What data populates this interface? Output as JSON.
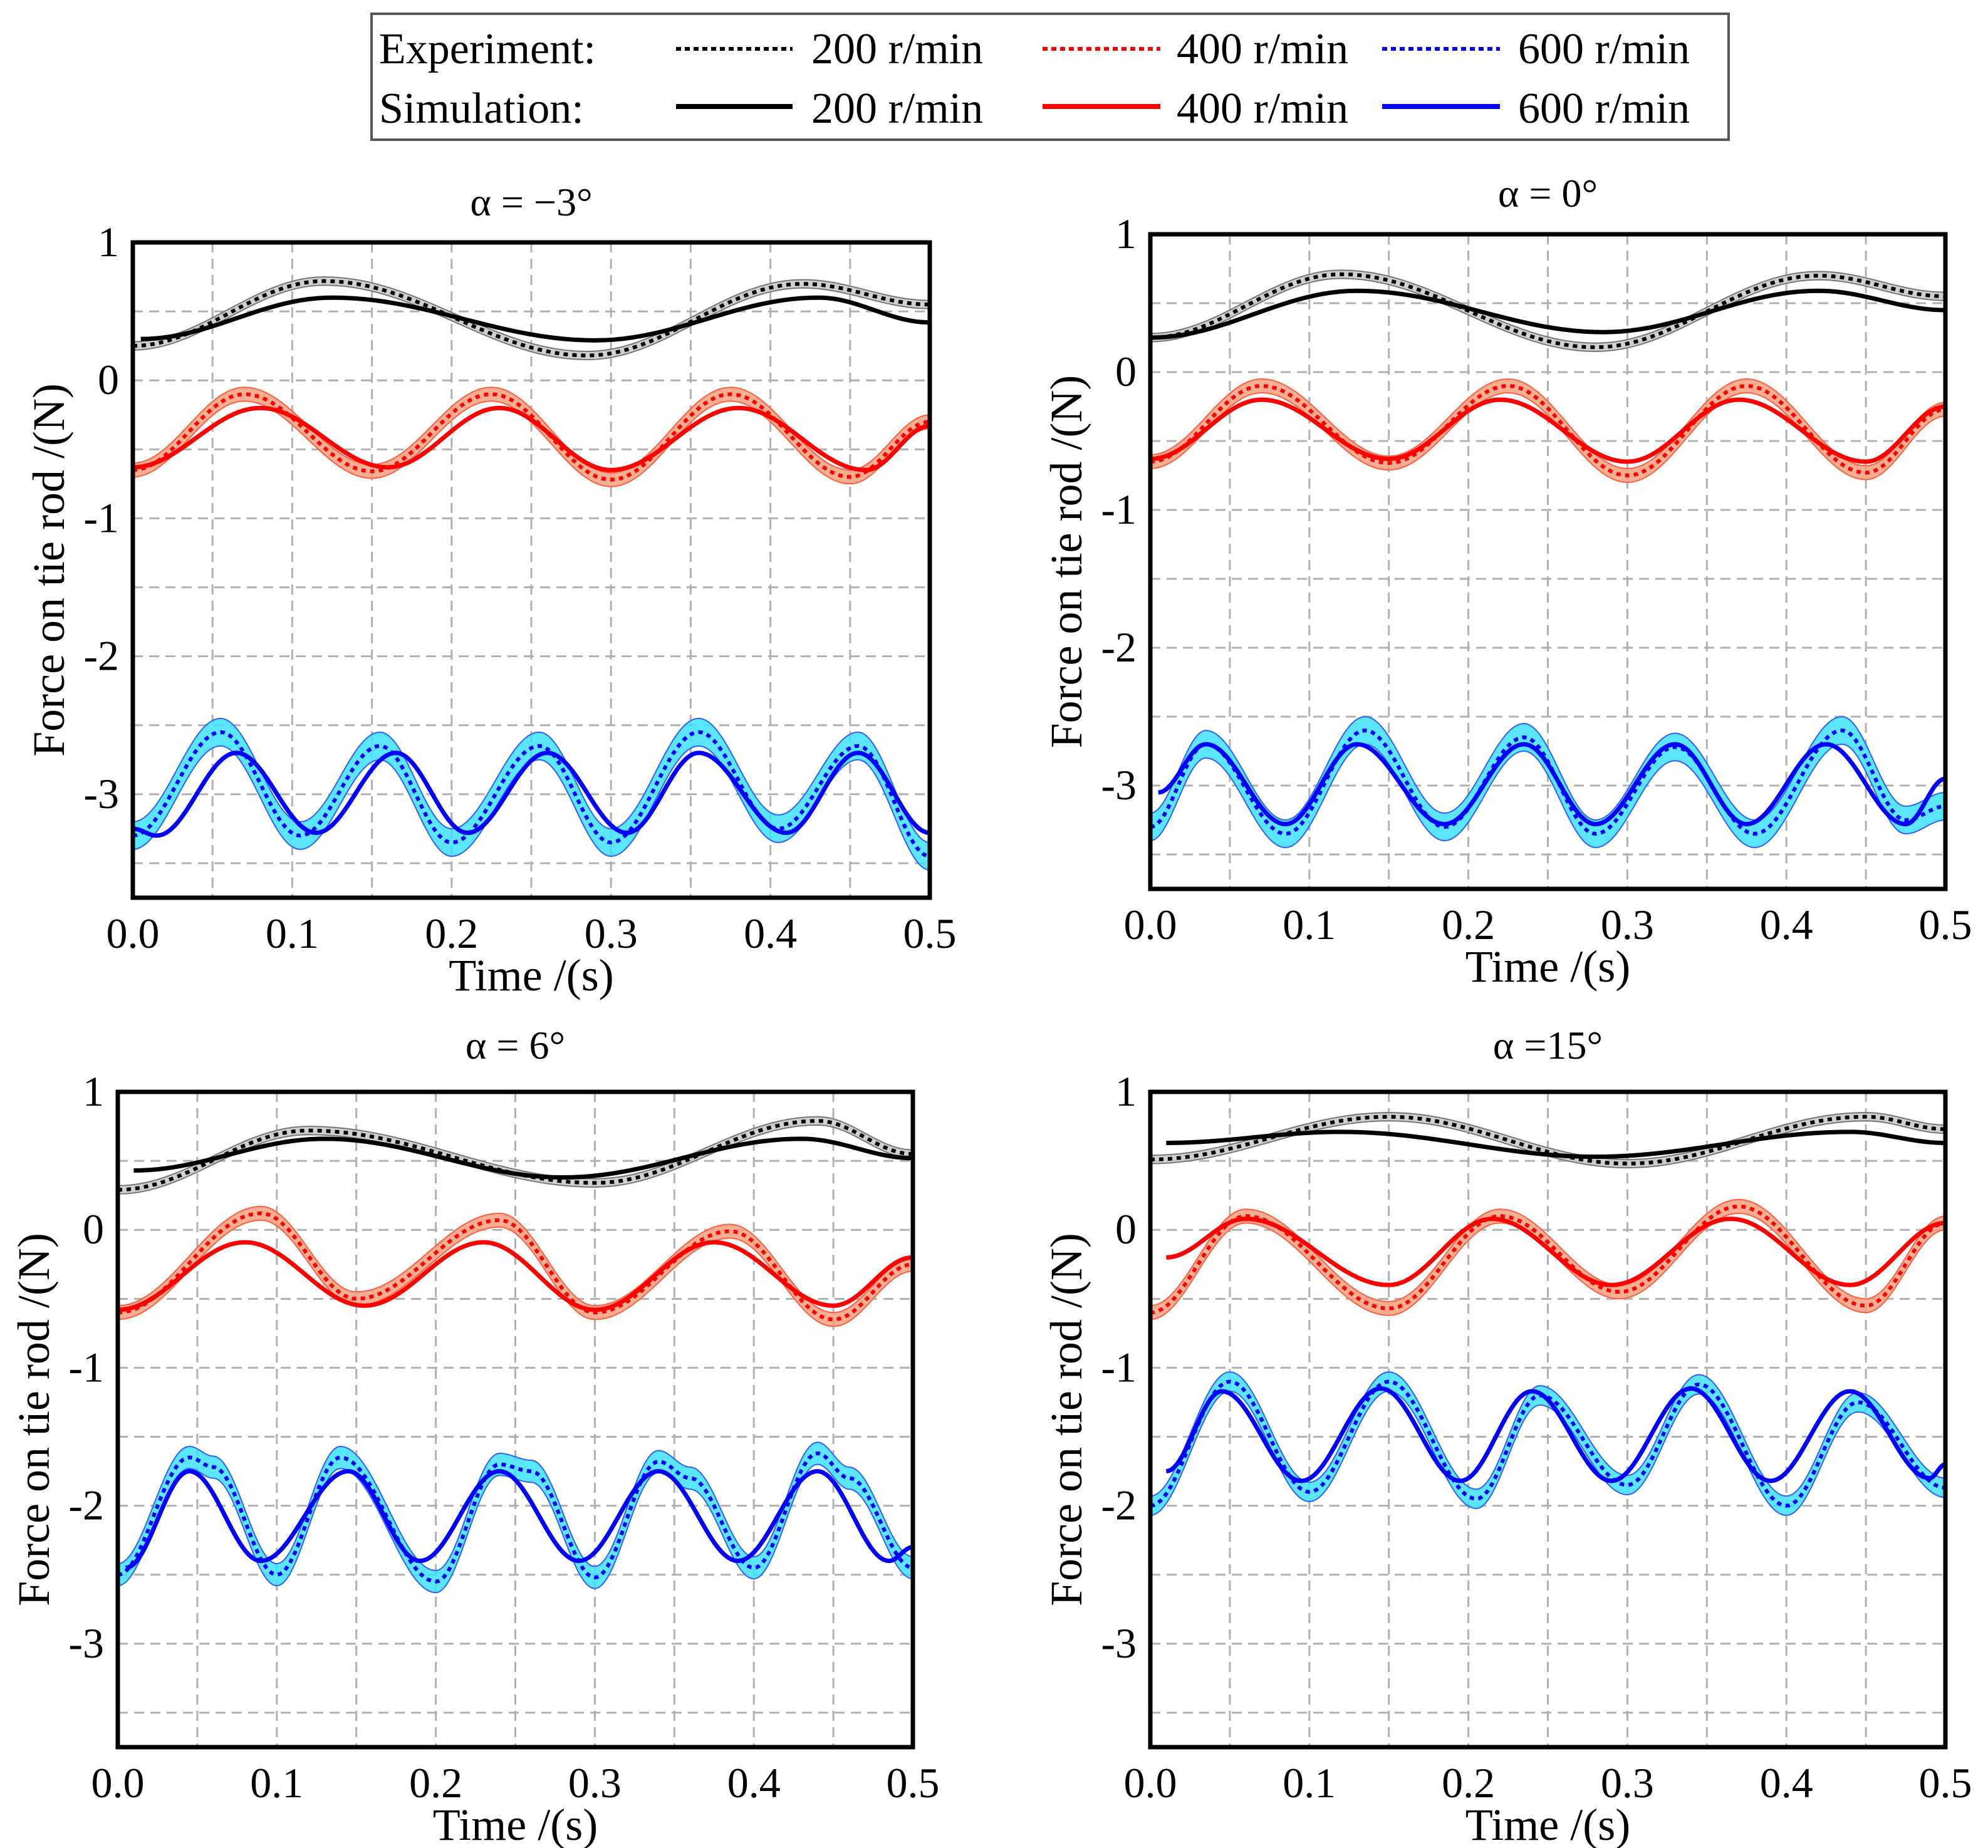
{
  "legend": {
    "experiment_label": "Experiment:",
    "simulation_label": "Simulation:",
    "speeds": [
      "200 r/min",
      "400 r/min",
      "600 r/min"
    ],
    "colors": [
      "#000000",
      "#ff0000",
      "#0000ff"
    ]
  },
  "chart_data": [
    {
      "type": "line",
      "title": "α = −3°",
      "xlabel": "Time /(s)",
      "ylabel": "Force on tie rod /(N)",
      "xlim": [
        0,
        0.5
      ],
      "ylim": [
        -3.75,
        1
      ],
      "xticks": [
        "0.0",
        "0.1",
        "0.2",
        "0.3",
        "0.4",
        "0.5"
      ],
      "yticks": [
        "1",
        "0",
        "-1",
        "-2",
        "-3"
      ],
      "grid": true,
      "band_halfwidth": {
        "200": 0.03,
        "400": 0.05,
        "600": 0.1
      },
      "series": {
        "exp200": [
          [
            0,
            0.25
          ],
          [
            0.12,
            0.72
          ],
          [
            0.285,
            0.18
          ],
          [
            0.42,
            0.7
          ],
          [
            0.5,
            0.55
          ]
        ],
        "sim200": [
          [
            0.005,
            0.3
          ],
          [
            0.125,
            0.6
          ],
          [
            0.29,
            0.29
          ],
          [
            0.43,
            0.6
          ],
          [
            0.5,
            0.42
          ]
        ],
        "exp400": [
          [
            0,
            -0.65
          ],
          [
            0.07,
            -0.1
          ],
          [
            0.15,
            -0.66
          ],
          [
            0.225,
            -0.1
          ],
          [
            0.3,
            -0.72
          ],
          [
            0.375,
            -0.1
          ],
          [
            0.45,
            -0.7
          ],
          [
            0.5,
            -0.3
          ]
        ],
        "sim400": [
          [
            0,
            -0.63
          ],
          [
            0.08,
            -0.2
          ],
          [
            0.16,
            -0.63
          ],
          [
            0.23,
            -0.2
          ],
          [
            0.3,
            -0.65
          ],
          [
            0.38,
            -0.2
          ],
          [
            0.46,
            -0.65
          ],
          [
            0.5,
            -0.33
          ]
        ],
        "exp600": [
          [
            0,
            -3.3
          ],
          [
            0.055,
            -2.55
          ],
          [
            0.105,
            -3.3
          ],
          [
            0.155,
            -2.65
          ],
          [
            0.2,
            -3.35
          ],
          [
            0.255,
            -2.65
          ],
          [
            0.3,
            -3.35
          ],
          [
            0.355,
            -2.55
          ],
          [
            0.405,
            -3.25
          ],
          [
            0.455,
            -2.65
          ],
          [
            0.5,
            -3.45
          ]
        ],
        "sim600": [
          [
            0.0,
            -3.25
          ],
          [
            0.015,
            -3.3
          ],
          [
            0.065,
            -2.7
          ],
          [
            0.115,
            -3.28
          ],
          [
            0.165,
            -2.7
          ],
          [
            0.21,
            -3.28
          ],
          [
            0.26,
            -2.7
          ],
          [
            0.31,
            -3.28
          ],
          [
            0.355,
            -2.7
          ],
          [
            0.41,
            -3.28
          ],
          [
            0.455,
            -2.7
          ],
          [
            0.5,
            -3.28
          ]
        ]
      }
    },
    {
      "type": "line",
      "title": "α = 0°",
      "xlabel": "Time /(s)",
      "ylabel": "Force on tie rod /(N)",
      "xlim": [
        0,
        0.5
      ],
      "ylim": [
        -3.75,
        1
      ],
      "xticks": [
        "0.0",
        "0.1",
        "0.2",
        "0.3",
        "0.4",
        "0.5"
      ],
      "yticks": [
        "1",
        "0",
        "-1",
        "-2",
        "-3"
      ],
      "grid": true,
      "band_halfwidth": {
        "200": 0.03,
        "400": 0.05,
        "600": 0.1
      },
      "series": {
        "exp200": [
          [
            0,
            0.25
          ],
          [
            0.12,
            0.71
          ],
          [
            0.28,
            0.18
          ],
          [
            0.42,
            0.7
          ],
          [
            0.5,
            0.55
          ]
        ],
        "sim200": [
          [
            0,
            0.25
          ],
          [
            0.13,
            0.59
          ],
          [
            0.285,
            0.29
          ],
          [
            0.42,
            0.59
          ],
          [
            0.5,
            0.45
          ]
        ],
        "exp400": [
          [
            0,
            -0.65
          ],
          [
            0.07,
            -0.1
          ],
          [
            0.15,
            -0.66
          ],
          [
            0.225,
            -0.1
          ],
          [
            0.3,
            -0.75
          ],
          [
            0.375,
            -0.1
          ],
          [
            0.45,
            -0.73
          ],
          [
            0.5,
            -0.27
          ]
        ],
        "sim400": [
          [
            0,
            -0.63
          ],
          [
            0.07,
            -0.2
          ],
          [
            0.15,
            -0.63
          ],
          [
            0.22,
            -0.2
          ],
          [
            0.3,
            -0.65
          ],
          [
            0.37,
            -0.2
          ],
          [
            0.45,
            -0.65
          ],
          [
            0.5,
            -0.25
          ]
        ],
        "exp600": [
          [
            0,
            -3.3
          ],
          [
            0.035,
            -2.7
          ],
          [
            0.085,
            -3.35
          ],
          [
            0.135,
            -2.6
          ],
          [
            0.185,
            -3.3
          ],
          [
            0.235,
            -2.65
          ],
          [
            0.28,
            -3.35
          ],
          [
            0.33,
            -2.72
          ],
          [
            0.38,
            -3.35
          ],
          [
            0.435,
            -2.6
          ],
          [
            0.475,
            -3.25
          ],
          [
            0.5,
            -3.15
          ]
        ],
        "sim600": [
          [
            0.005,
            -3.05
          ],
          [
            0.035,
            -2.7
          ],
          [
            0.085,
            -3.28
          ],
          [
            0.13,
            -2.7
          ],
          [
            0.185,
            -3.28
          ],
          [
            0.235,
            -2.7
          ],
          [
            0.28,
            -3.28
          ],
          [
            0.33,
            -2.7
          ],
          [
            0.375,
            -3.28
          ],
          [
            0.425,
            -2.7
          ],
          [
            0.475,
            -3.28
          ],
          [
            0.5,
            -2.95
          ]
        ]
      }
    },
    {
      "type": "line",
      "title": "α = 6°",
      "xlabel": "Time /(s)",
      "ylabel": "Force on tie rod /(N)",
      "xlim": [
        0,
        0.5
      ],
      "ylim": [
        -3.75,
        1
      ],
      "xticks": [
        "0.0",
        "0.1",
        "0.2",
        "0.3",
        "0.4",
        "0.5"
      ],
      "yticks": [
        "1",
        "0",
        "-1",
        "-2",
        "-3"
      ],
      "grid": true,
      "band_halfwidth": {
        "200": 0.03,
        "400": 0.05,
        "600": 0.08
      },
      "series": {
        "exp200": [
          [
            0,
            0.29
          ],
          [
            0.12,
            0.72
          ],
          [
            0.3,
            0.34
          ],
          [
            0.44,
            0.79
          ],
          [
            0.5,
            0.55
          ]
        ],
        "sim200": [
          [
            0.01,
            0.43
          ],
          [
            0.13,
            0.66
          ],
          [
            0.28,
            0.38
          ],
          [
            0.43,
            0.66
          ],
          [
            0.5,
            0.52
          ]
        ],
        "exp400": [
          [
            0,
            -0.6
          ],
          [
            0.09,
            0.12
          ],
          [
            0.15,
            -0.5
          ],
          [
            0.24,
            0.07
          ],
          [
            0.3,
            -0.6
          ],
          [
            0.385,
            -0.01
          ],
          [
            0.45,
            -0.65
          ],
          [
            0.5,
            -0.25
          ]
        ],
        "sim400": [
          [
            0,
            -0.58
          ],
          [
            0.08,
            -0.09
          ],
          [
            0.155,
            -0.55
          ],
          [
            0.23,
            -0.09
          ],
          [
            0.3,
            -0.58
          ],
          [
            0.375,
            -0.09
          ],
          [
            0.45,
            -0.55
          ],
          [
            0.5,
            -0.2
          ]
        ],
        "exp600": [
          [
            0,
            -2.5
          ],
          [
            0.045,
            -1.65
          ],
          [
            0.06,
            -1.72
          ],
          [
            0.1,
            -2.5
          ],
          [
            0.14,
            -1.65
          ],
          [
            0.2,
            -2.55
          ],
          [
            0.24,
            -1.7
          ],
          [
            0.26,
            -1.75
          ],
          [
            0.3,
            -2.52
          ],
          [
            0.34,
            -1.68
          ],
          [
            0.36,
            -1.8
          ],
          [
            0.4,
            -2.45
          ],
          [
            0.44,
            -1.62
          ],
          [
            0.46,
            -1.8
          ],
          [
            0.5,
            -2.45
          ]
        ],
        "sim600": [
          [
            0.005,
            -2.45
          ],
          [
            0.045,
            -1.75
          ],
          [
            0.09,
            -2.4
          ],
          [
            0.145,
            -1.75
          ],
          [
            0.19,
            -2.4
          ],
          [
            0.24,
            -1.75
          ],
          [
            0.29,
            -2.4
          ],
          [
            0.34,
            -1.75
          ],
          [
            0.39,
            -2.4
          ],
          [
            0.44,
            -1.75
          ],
          [
            0.485,
            -2.4
          ],
          [
            0.5,
            -2.3
          ]
        ]
      }
    },
    {
      "type": "line",
      "title": "α =15°",
      "xlabel": "Time /(s)",
      "ylabel": "Force on tie rod /(N)",
      "xlim": [
        0,
        0.5
      ],
      "ylim": [
        -3.75,
        1
      ],
      "xticks": [
        "0.0",
        "0.1",
        "0.2",
        "0.3",
        "0.4",
        "0.5"
      ],
      "yticks": [
        "1",
        "0",
        "-1",
        "-2",
        "-3"
      ],
      "grid": true,
      "band_halfwidth": {
        "200": 0.03,
        "400": 0.05,
        "600": 0.07
      },
      "series": {
        "exp200": [
          [
            0,
            0.51
          ],
          [
            0.15,
            0.82
          ],
          [
            0.3,
            0.48
          ],
          [
            0.45,
            0.82
          ],
          [
            0.5,
            0.73
          ]
        ],
        "sim200": [
          [
            0.01,
            0.63
          ],
          [
            0.12,
            0.71
          ],
          [
            0.28,
            0.53
          ],
          [
            0.44,
            0.71
          ],
          [
            0.5,
            0.63
          ]
        ],
        "exp400": [
          [
            0,
            -0.6
          ],
          [
            0.06,
            0.1
          ],
          [
            0.15,
            -0.57
          ],
          [
            0.22,
            0.1
          ],
          [
            0.295,
            -0.45
          ],
          [
            0.37,
            0.17
          ],
          [
            0.45,
            -0.55
          ],
          [
            0.5,
            0.05
          ]
        ],
        "sim400": [
          [
            0.01,
            -0.2
          ],
          [
            0.06,
            0.08
          ],
          [
            0.15,
            -0.4
          ],
          [
            0.215,
            0.08
          ],
          [
            0.29,
            -0.4
          ],
          [
            0.365,
            0.08
          ],
          [
            0.44,
            -0.4
          ],
          [
            0.5,
            0.05
          ]
        ],
        "exp600": [
          [
            0,
            -2.0
          ],
          [
            0.05,
            -1.1
          ],
          [
            0.1,
            -1.9
          ],
          [
            0.15,
            -1.1
          ],
          [
            0.205,
            -1.95
          ],
          [
            0.245,
            -1.2
          ],
          [
            0.3,
            -1.85
          ],
          [
            0.345,
            -1.12
          ],
          [
            0.4,
            -2.0
          ],
          [
            0.445,
            -1.25
          ],
          [
            0.5,
            -1.87
          ]
        ],
        "sim600": [
          [
            0.01,
            -1.75
          ],
          [
            0.045,
            -1.17
          ],
          [
            0.095,
            -1.82
          ],
          [
            0.145,
            -1.15
          ],
          [
            0.195,
            -1.82
          ],
          [
            0.24,
            -1.17
          ],
          [
            0.29,
            -1.82
          ],
          [
            0.34,
            -1.15
          ],
          [
            0.39,
            -1.82
          ],
          [
            0.44,
            -1.17
          ],
          [
            0.49,
            -1.8
          ],
          [
            0.5,
            -1.7
          ]
        ]
      }
    }
  ]
}
